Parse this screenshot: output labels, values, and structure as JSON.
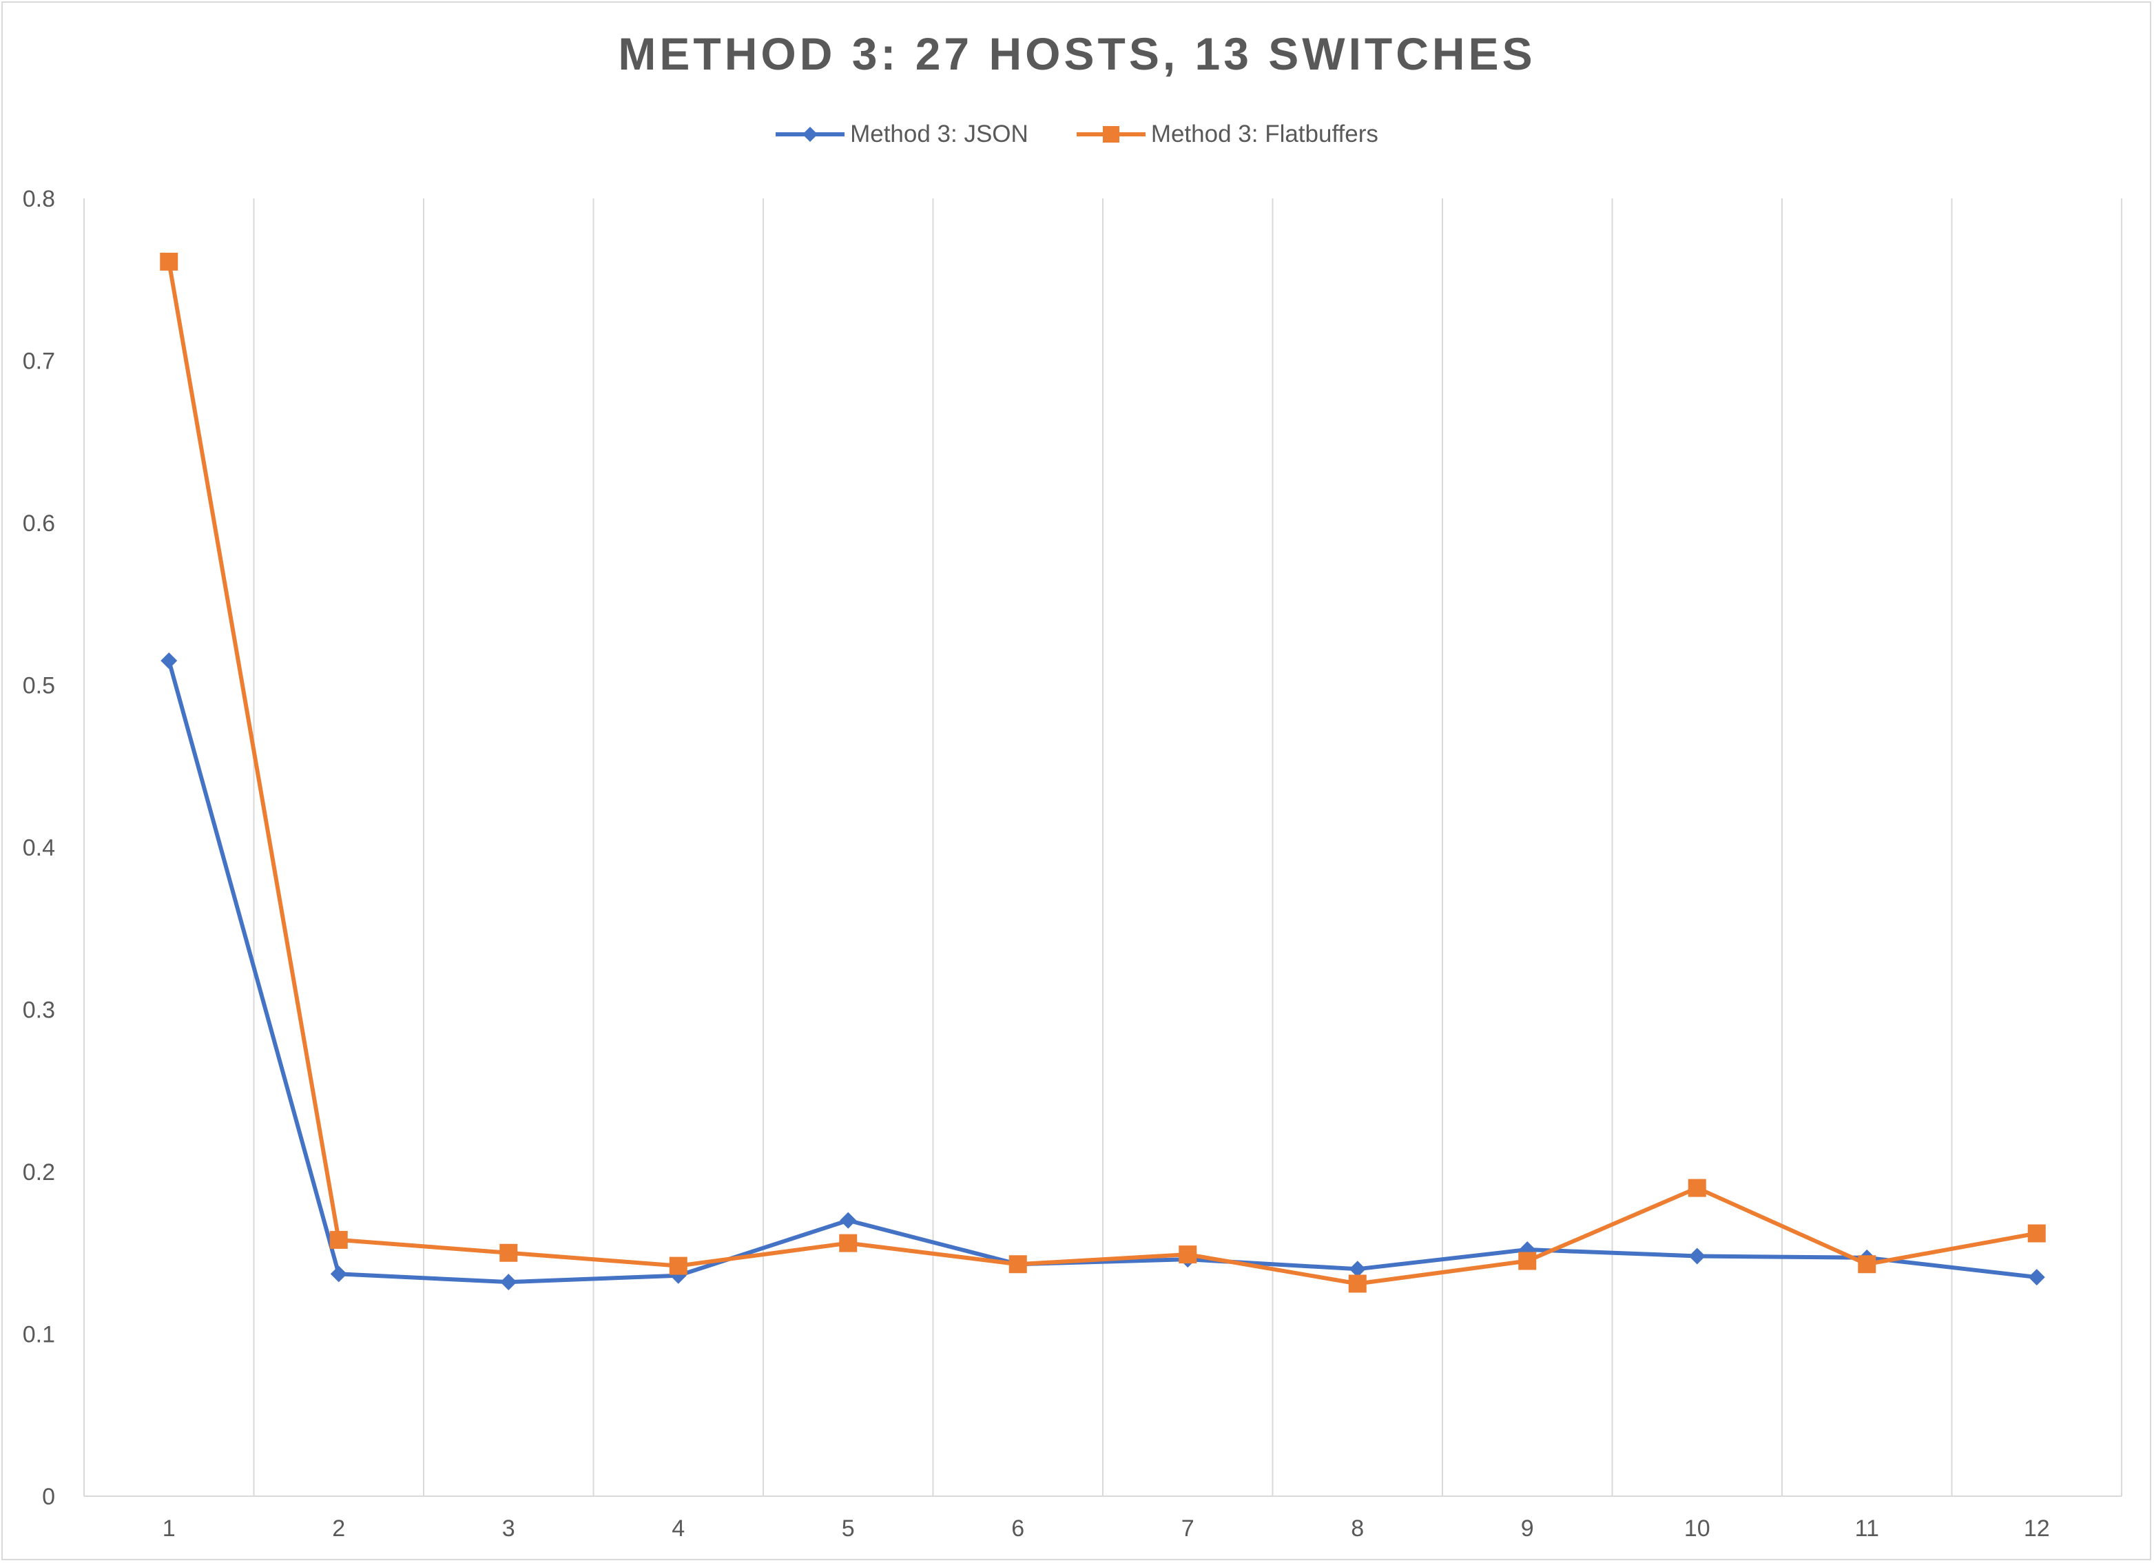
{
  "chart_data": {
    "type": "line",
    "title": "METHOD 3: 27 HOSTS, 13 SWITCHES",
    "xlabel": "",
    "ylabel": "",
    "categories": [
      "1",
      "2",
      "3",
      "4",
      "5",
      "6",
      "7",
      "8",
      "9",
      "10",
      "11",
      "12"
    ],
    "ylim": [
      0,
      0.8
    ],
    "yticks": [
      "0",
      "0.1",
      "0.2",
      "0.3",
      "0.4",
      "0.5",
      "0.6",
      "0.7",
      "0.8"
    ],
    "grid": "vertical",
    "legend_position": "top",
    "series": [
      {
        "name": "Method 3: JSON",
        "color": "#4472C4",
        "marker": "diamond",
        "values": [
          0.515,
          0.137,
          0.132,
          0.136,
          0.17,
          0.143,
          0.146,
          0.14,
          0.152,
          0.148,
          0.147,
          0.135
        ]
      },
      {
        "name": "Method 3: Flatbuffers",
        "color": "#ED7D31",
        "marker": "square",
        "values": [
          0.761,
          0.158,
          0.15,
          0.142,
          0.156,
          0.143,
          0.149,
          0.131,
          0.145,
          0.19,
          0.143,
          0.162
        ]
      }
    ]
  }
}
